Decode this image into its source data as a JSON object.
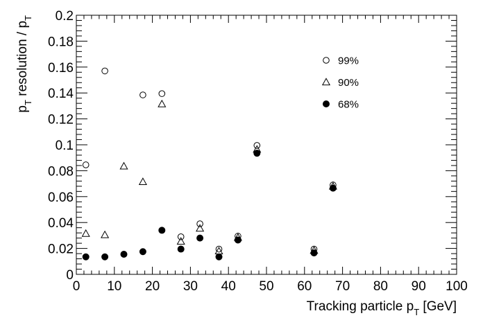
{
  "chart_data": {
    "type": "scatter",
    "title": "",
    "xlabel": "Tracking particle p",
    "xlabel_sub": "T",
    "xlabel_unit": " [GeV]",
    "ylabel": "p",
    "ylabel_sub": "T",
    "ylabel_mid": " resolution / p",
    "ylabel_sub2": "T",
    "xlim": [
      0,
      100
    ],
    "ylim": [
      0,
      0.2
    ],
    "xticks": [
      "0",
      "10",
      "20",
      "30",
      "40",
      "50",
      "60",
      "70",
      "80",
      "90",
      "100"
    ],
    "yticks": [
      "0",
      "0.02",
      "0.04",
      "0.06",
      "0.08",
      "0.1",
      "0.12",
      "0.14",
      "0.16",
      "0.18",
      "0.2"
    ],
    "grid": false,
    "legend_position": "top-right",
    "series": [
      {
        "name": "99%",
        "marker": "open-circle",
        "color": "#000000",
        "points": [
          [
            2.5,
            0.0845
          ],
          [
            7.5,
            0.157
          ],
          [
            17.5,
            0.1385
          ],
          [
            22.5,
            0.1395
          ],
          [
            27.5,
            0.029
          ],
          [
            32.5,
            0.039
          ],
          [
            37.5,
            0.0195
          ],
          [
            42.5,
            0.0295
          ],
          [
            47.5,
            0.0995
          ],
          [
            62.5,
            0.0195
          ],
          [
            67.5,
            0.069
          ]
        ]
      },
      {
        "name": "90%",
        "marker": "open-triangle",
        "color": "#000000",
        "points": [
          [
            2.5,
            0.0315
          ],
          [
            7.5,
            0.0305
          ],
          [
            12.5,
            0.0835
          ],
          [
            17.5,
            0.0715
          ],
          [
            22.5,
            0.1315
          ],
          [
            27.5,
            0.0255
          ],
          [
            32.5,
            0.0355
          ],
          [
            37.5,
            0.018
          ],
          [
            42.5,
            0.0285
          ],
          [
            47.5,
            0.0965
          ],
          [
            62.5,
            0.0185
          ],
          [
            67.5,
            0.068
          ]
        ]
      },
      {
        "name": "68%",
        "marker": "filled-circle",
        "color": "#000000",
        "points": [
          [
            2.5,
            0.0135
          ],
          [
            7.5,
            0.0135
          ],
          [
            12.5,
            0.0155
          ],
          [
            17.5,
            0.0175
          ],
          [
            22.5,
            0.034
          ],
          [
            27.5,
            0.0195
          ],
          [
            32.5,
            0.028
          ],
          [
            37.5,
            0.0135
          ],
          [
            42.5,
            0.0265
          ],
          [
            47.5,
            0.0935
          ],
          [
            62.5,
            0.0165
          ],
          [
            67.5,
            0.0665
          ]
        ]
      }
    ]
  }
}
